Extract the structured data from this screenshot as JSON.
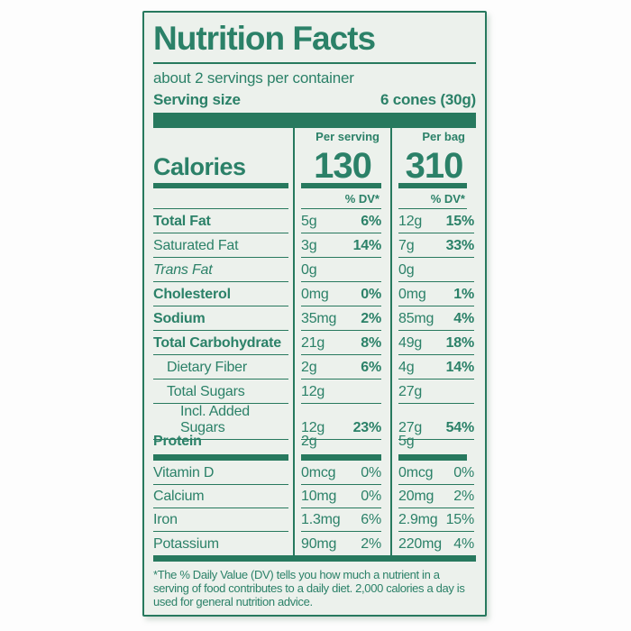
{
  "colors": {
    "green": "#2b8168",
    "rule_green": "#27795e",
    "label_bg": "#ecf1ec",
    "page_bg": "#fdfdfd"
  },
  "label": {
    "title": "Nutrition Facts",
    "servings_per_container": "about 2 servings per container",
    "serving_size_label": "Serving size",
    "serving_size_value": "6 cones (30g)",
    "calories": {
      "label": "Calories",
      "per_serving_header": "Per serving",
      "per_bag_header": "Per bag",
      "per_serving_value": "130",
      "per_bag_value": "310",
      "dv_header": "% DV*"
    },
    "nutrients": [
      {
        "name": "Total Fat",
        "serving_amount": "5g",
        "serving_dv": "6%",
        "bag_amount": "12g",
        "bag_dv": "15%"
      },
      {
        "name": "Saturated Fat",
        "serving_amount": "3g",
        "serving_dv": "14%",
        "bag_amount": "7g",
        "bag_dv": "33%"
      },
      {
        "name": "Trans Fat",
        "serving_amount": "0g",
        "serving_dv": "",
        "bag_amount": "0g",
        "bag_dv": ""
      },
      {
        "name": "Cholesterol",
        "serving_amount": "0mg",
        "serving_dv": "0%",
        "bag_amount": "0mg",
        "bag_dv": "1%"
      },
      {
        "name": "Sodium",
        "serving_amount": "35mg",
        "serving_dv": "2%",
        "bag_amount": "85mg",
        "bag_dv": "4%"
      },
      {
        "name": "Total Carbohydrate",
        "serving_amount": "21g",
        "serving_dv": "8%",
        "bag_amount": "49g",
        "bag_dv": "18%"
      },
      {
        "name": "Dietary Fiber",
        "serving_amount": "2g",
        "serving_dv": "6%",
        "bag_amount": "4g",
        "bag_dv": "14%"
      },
      {
        "name": "Total Sugars",
        "serving_amount": "12g",
        "serving_dv": "",
        "bag_amount": "27g",
        "bag_dv": ""
      },
      {
        "name": "Incl. Added Sugars",
        "serving_amount": "12g",
        "serving_dv": "23%",
        "bag_amount": "27g",
        "bag_dv": "54%"
      },
      {
        "name": "Protein",
        "serving_amount": "2g",
        "serving_dv": "",
        "bag_amount": "5g",
        "bag_dv": ""
      }
    ],
    "vitamins": [
      {
        "name": "Vitamin D",
        "serving_amount": "0mcg",
        "serving_dv": "0%",
        "bag_amount": "0mcg",
        "bag_dv": "0%"
      },
      {
        "name": "Calcium",
        "serving_amount": "10mg",
        "serving_dv": "0%",
        "bag_amount": "20mg",
        "bag_dv": "2%"
      },
      {
        "name": "Iron",
        "serving_amount": "1.3mg",
        "serving_dv": "6%",
        "bag_amount": "2.9mg",
        "bag_dv": "15%"
      },
      {
        "name": "Potassium",
        "serving_amount": "90mg",
        "serving_dv": "2%",
        "bag_amount": "220mg",
        "bag_dv": "4%"
      }
    ],
    "footnote": "*The % Daily Value (DV) tells you how much a nutrient in a serving of food contributes to a daily diet. 2,000 calories a day is used for general nutrition advice."
  }
}
